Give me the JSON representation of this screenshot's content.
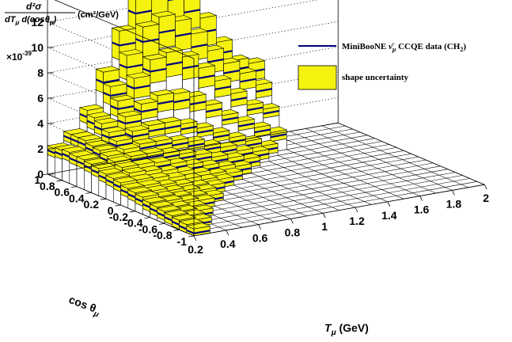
{
  "chart_data": {
    "type": "bar3d",
    "z_label_top": "d²σ",
    "z_label_bottom": "dT",
    "z_label_mu": "μ",
    "z_label_d": " d(cos",
    "z_label_theta": "θ",
    "z_label_close": ")",
    "z_units": "(cm²/GeV)",
    "z_scale_prefix": "×10",
    "z_scale_exp": "-39",
    "z_ticks": [
      "0",
      "2",
      "4",
      "6",
      "8",
      "10",
      "12"
    ],
    "z_range": [
      0,
      14
    ],
    "x_label": "T",
    "x_label_sub": "μ",
    "x_label_unit": " (GeV)",
    "x_ticks": [
      "0.2",
      "0.4",
      "0.6",
      "0.8",
      "1",
      "1.2",
      "1.4",
      "1.6",
      "1.8",
      "2"
    ],
    "x_range": [
      0.2,
      2.0
    ],
    "y_label": "cos θ",
    "y_label_sub": "μ",
    "y_ticks": [
      "1",
      "0.8",
      "0.6",
      "0.4",
      "0.2",
      "0",
      "-0.2",
      "-0.4",
      "-0.6",
      "-0.8",
      "-1"
    ],
    "y_range": [
      1.0,
      -1.0
    ],
    "legend": [
      {
        "marker": "line",
        "label_a": "MiniBooNE ",
        "label_nu": "ν̄",
        "label_mu": "μ",
        "label_b": " CCQE data (CH",
        "label_sub": "2",
        "label_c": ")"
      },
      {
        "marker": "box",
        "label": "shape uncertainty"
      }
    ],
    "colors": {
      "fill": "#f5f20f",
      "line": "#00007f",
      "face": "#ffffff",
      "grid": "#000000"
    },
    "t_centers": [
      0.25,
      0.35,
      0.45,
      0.55,
      0.65,
      0.75,
      0.85,
      0.95,
      1.05,
      1.15,
      1.25,
      1.35,
      1.45,
      1.55,
      1.65,
      1.75,
      1.85,
      1.95
    ],
    "cos_centers": [
      0.95,
      0.85,
      0.75,
      0.65,
      0.55,
      0.45,
      0.35,
      0.25,
      0.15,
      0.05,
      -0.05,
      -0.15,
      -0.25,
      -0.35,
      -0.45,
      -0.55,
      -0.65,
      -0.75,
      -0.85,
      -0.95
    ],
    "grid": [
      [
        1.9,
        2.8,
        4.3,
        6.8,
        9.5,
        11.8,
        12.7,
        12.4,
        11.2,
        9.4,
        7.5,
        6.0,
        5.6,
        0,
        0,
        0,
        0,
        0
      ],
      [
        2.0,
        2.8,
        4.0,
        6.0,
        8.0,
        9.8,
        10.3,
        9.8,
        8.7,
        7.3,
        6.2,
        5.3,
        4.3,
        0,
        0,
        0,
        0,
        0
      ],
      [
        2.1,
        2.8,
        3.8,
        5.2,
        6.6,
        7.7,
        8.0,
        7.5,
        6.5,
        5.4,
        4.3,
        3.3,
        2.8,
        0,
        0,
        0,
        0,
        0
      ],
      [
        2.0,
        2.6,
        3.4,
        4.3,
        5.0,
        5.4,
        5.3,
        4.9,
        4.1,
        3.2,
        2.5,
        1.8,
        1.2,
        0,
        0,
        0,
        0,
        0
      ],
      [
        2.0,
        2.5,
        3.0,
        3.5,
        3.7,
        3.7,
        3.4,
        2.9,
        2.3,
        1.7,
        1.2,
        0.6,
        0,
        0,
        0,
        0,
        0,
        0
      ],
      [
        1.9,
        2.3,
        2.6,
        2.8,
        2.8,
        2.6,
        2.3,
        1.8,
        1.4,
        0.9,
        0.6,
        0,
        0,
        0,
        0,
        0,
        0,
        0
      ],
      [
        1.8,
        2.1,
        2.3,
        2.3,
        2.1,
        1.8,
        1.5,
        1.1,
        0.8,
        0.5,
        0,
        0,
        0,
        0,
        0,
        0,
        0,
        0
      ],
      [
        1.6,
        1.9,
        1.9,
        1.8,
        1.5,
        1.2,
        0.9,
        0.6,
        0.4,
        0,
        0,
        0,
        0,
        0,
        0,
        0,
        0,
        0
      ],
      [
        1.5,
        1.7,
        1.6,
        1.4,
        1.1,
        0.8,
        0.5,
        0.3,
        0,
        0,
        0,
        0,
        0,
        0,
        0,
        0,
        0,
        0
      ],
      [
        1.4,
        1.4,
        1.3,
        1.1,
        0.8,
        0.5,
        0.3,
        0,
        0,
        0,
        0,
        0,
        0,
        0,
        0,
        0,
        0,
        0
      ],
      [
        1.2,
        1.2,
        1.0,
        0.8,
        0.5,
        0.3,
        0,
        0,
        0,
        0,
        0,
        0,
        0,
        0,
        0,
        0,
        0,
        0
      ],
      [
        1.1,
        1.0,
        0.8,
        0.6,
        0.4,
        0,
        0,
        0,
        0,
        0,
        0,
        0,
        0,
        0,
        0,
        0,
        0,
        0
      ],
      [
        1.0,
        0.8,
        0.6,
        0.4,
        0.2,
        0,
        0,
        0,
        0,
        0,
        0,
        0,
        0,
        0,
        0,
        0,
        0,
        0
      ],
      [
        0.8,
        0.7,
        0.5,
        0.3,
        0,
        0,
        0,
        0,
        0,
        0,
        0,
        0,
        0,
        0,
        0,
        0,
        0,
        0
      ],
      [
        0.7,
        0.5,
        0.3,
        0,
        0,
        0,
        0,
        0,
        0,
        0,
        0,
        0,
        0,
        0,
        0,
        0,
        0,
        0
      ],
      [
        0.6,
        0.4,
        0.2,
        0,
        0,
        0,
        0,
        0,
        0,
        0,
        0,
        0,
        0,
        0,
        0,
        0,
        0,
        0
      ],
      [
        0.5,
        0.3,
        0,
        0,
        0,
        0,
        0,
        0,
        0,
        0,
        0,
        0,
        0,
        0,
        0,
        0,
        0,
        0
      ],
      [
        0.4,
        0.2,
        0,
        0,
        0,
        0,
        0,
        0,
        0,
        0,
        0,
        0,
        0,
        0,
        0,
        0,
        0,
        0
      ],
      [
        0.3,
        0,
        0,
        0,
        0,
        0,
        0,
        0,
        0,
        0,
        0,
        0,
        0,
        0,
        0,
        0,
        0,
        0
      ],
      [
        0.2,
        0,
        0,
        0,
        0,
        0,
        0,
        0,
        0,
        0,
        0,
        0,
        0,
        0,
        0,
        0,
        0,
        0
      ]
    ]
  }
}
